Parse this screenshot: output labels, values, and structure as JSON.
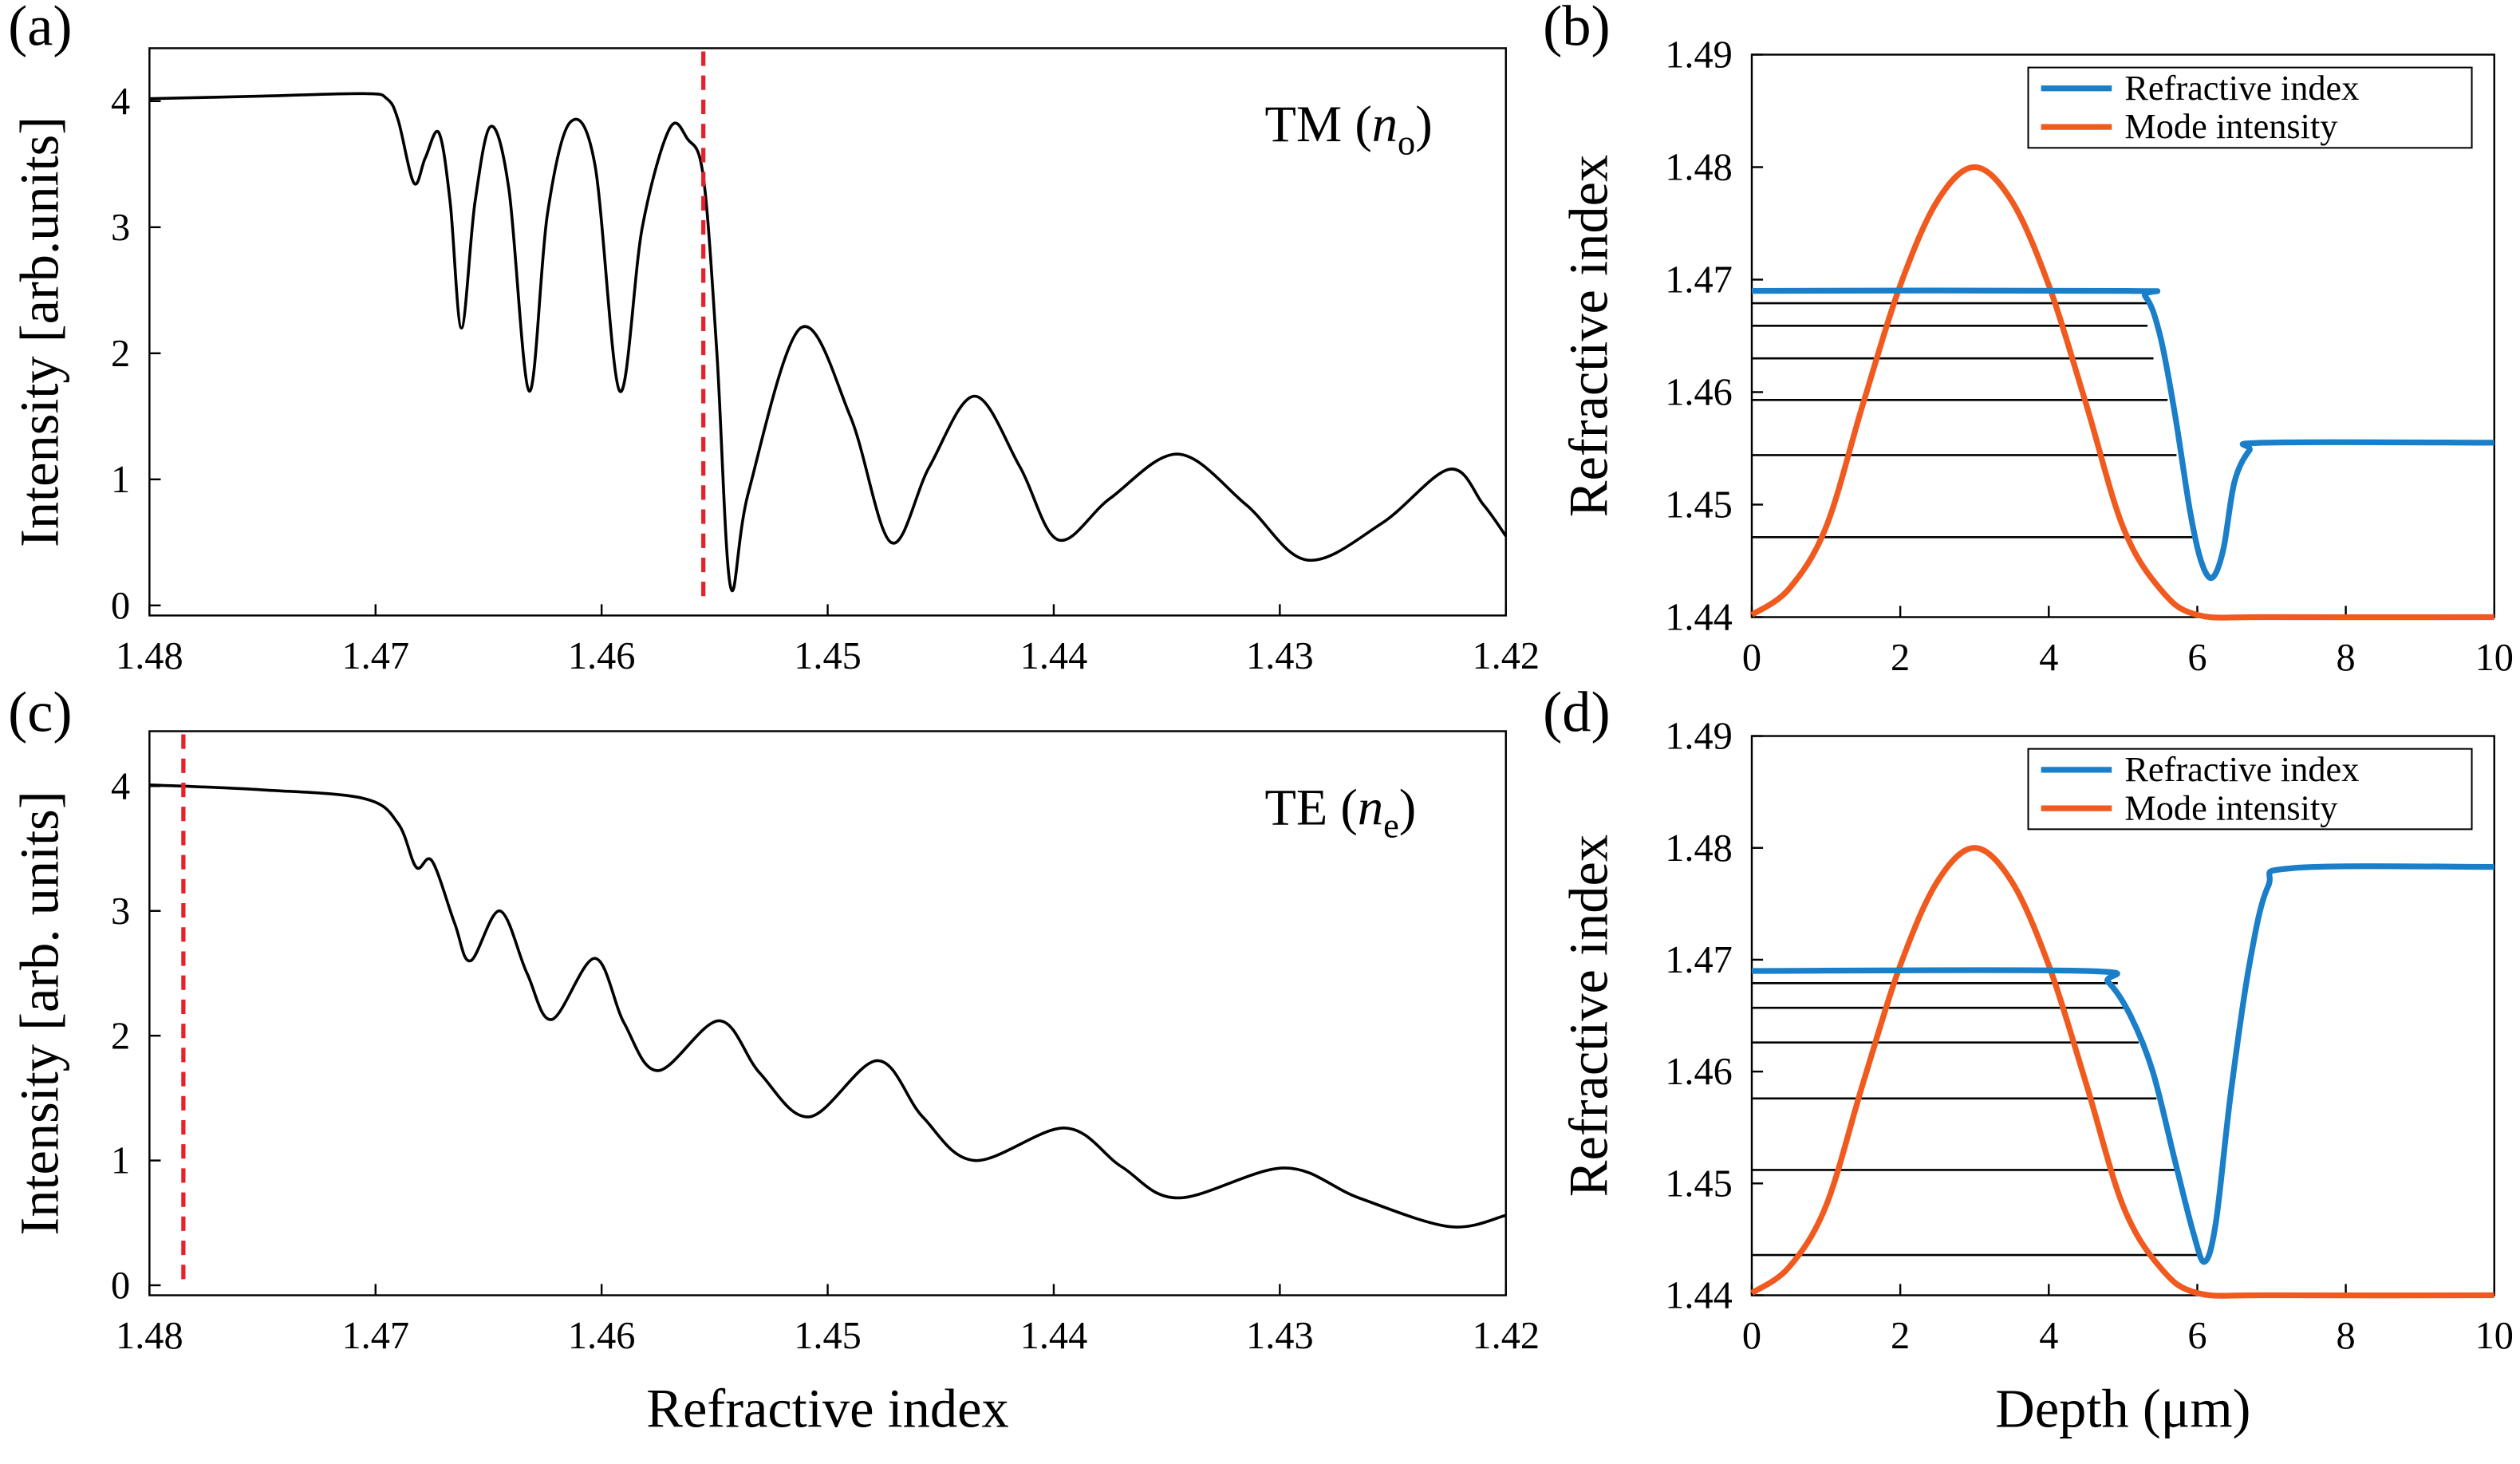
{
  "chart_data": [
    {
      "type": "line",
      "panel_label": "(a)",
      "ylabel": "Intensity [arb.units]",
      "annotation": [
        "TM (",
        "n",
        "o",
        ")"
      ],
      "x": [
        1.48,
        1.475,
        1.4705,
        1.4695,
        1.469,
        1.4683,
        1.4678,
        1.4672,
        1.4667,
        1.4662,
        1.4656,
        1.4649,
        1.4641,
        1.4632,
        1.4624,
        1.4614,
        1.4603,
        1.4592,
        1.4582,
        1.457,
        1.4562,
        1.4555,
        1.4549,
        1.4543,
        1.4535,
        1.4512,
        1.449,
        1.4472,
        1.4455,
        1.4435,
        1.4415,
        1.4398,
        1.4375,
        1.4345,
        1.4315,
        1.4288,
        1.4255,
        1.4225,
        1.421,
        1.42
      ],
      "values": [
        4.02,
        4.04,
        4.06,
        4.02,
        3.85,
        3.35,
        3.55,
        3.75,
        3.2,
        2.2,
        3.2,
        3.8,
        3.3,
        1.7,
        3.1,
        3.83,
        3.5,
        1.7,
        3.0,
        3.78,
        3.7,
        3.4,
        2.0,
        0.15,
        0.9,
        2.2,
        1.5,
        0.5,
        1.1,
        1.66,
        1.1,
        0.52,
        0.85,
        1.2,
        0.8,
        0.36,
        0.65,
        1.08,
        0.8,
        0.55
      ],
      "color": "#000000",
      "marker_x": 1.4555,
      "marker_color": "#e8202a",
      "xlim": [
        1.48,
        1.42
      ],
      "xticks": [
        1.48,
        1.47,
        1.46,
        1.45,
        1.44,
        1.43,
        1.42
      ],
      "ylim": [
        -0.08,
        4.42
      ],
      "yticks": [
        0,
        1,
        2,
        3,
        4
      ]
    },
    {
      "type": "modes",
      "panel_label": "(b)",
      "ylabel": "Refractive index",
      "series": [
        {
          "name": "Refractive index",
          "color": "#1a7fc8",
          "x": [
            0,
            5,
            5.3,
            5.5,
            5.7,
            5.9,
            6.05,
            6.2,
            6.35,
            6.5,
            6.7,
            6.9,
            10
          ],
          "values": [
            1.469,
            1.469,
            1.4685,
            1.465,
            1.458,
            1.4495,
            1.445,
            1.4435,
            1.446,
            1.452,
            1.4548,
            1.4555,
            1.4555
          ]
        },
        {
          "name": "Mode intensity",
          "color": "#f05a1e",
          "x": [
            0,
            0.5,
            1,
            1.5,
            2,
            2.5,
            3,
            3.5,
            4,
            4.5,
            5,
            5.5,
            6,
            7,
            10
          ],
          "values": [
            1.4402,
            1.4425,
            1.448,
            1.459,
            1.4695,
            1.477,
            1.48,
            1.477,
            1.4695,
            1.459,
            1.448,
            1.4425,
            1.4402,
            1.44,
            1.44
          ]
        }
      ],
      "mode_levels": [
        1.4679,
        1.4659,
        1.463,
        1.4593,
        1.4544,
        1.4471
      ],
      "mode_level_ends": [
        5.33,
        5.33,
        5.41,
        5.6,
        5.72,
        5.94
      ],
      "legend": "upper right",
      "xlim": [
        0,
        10
      ],
      "xticks": [
        0,
        2,
        4,
        6,
        8,
        10
      ],
      "ylim": [
        1.44,
        1.49
      ],
      "yticks": [
        1.44,
        1.45,
        1.46,
        1.47,
        1.48,
        1.49
      ]
    },
    {
      "type": "line",
      "panel_label": "(c)",
      "ylabel": "Intensity [arb. units]",
      "xlabel": "Refractive index",
      "annotation": [
        "TE (",
        "n",
        "e",
        ")"
      ],
      "x": [
        1.48,
        1.475,
        1.4705,
        1.469,
        1.4682,
        1.4675,
        1.4665,
        1.4658,
        1.4645,
        1.4633,
        1.4622,
        1.4603,
        1.459,
        1.4575,
        1.4548,
        1.453,
        1.4508,
        1.4478,
        1.4458,
        1.4435,
        1.4395,
        1.437,
        1.4345,
        1.4298,
        1.4265,
        1.4225,
        1.42
      ],
      "values": [
        4.01,
        3.97,
        3.9,
        3.7,
        3.35,
        3.4,
        2.9,
        2.6,
        3.0,
        2.5,
        2.13,
        2.62,
        2.1,
        1.72,
        2.12,
        1.7,
        1.35,
        1.8,
        1.35,
        1.0,
        1.26,
        0.95,
        0.7,
        0.94,
        0.7,
        0.47,
        0.56
      ],
      "color": "#000000",
      "marker_x": 1.4785,
      "marker_color": "#e8202a",
      "xlim": [
        1.48,
        1.42
      ],
      "xticks": [
        1.48,
        1.47,
        1.46,
        1.45,
        1.44,
        1.43,
        1.42
      ],
      "ylim": [
        -0.08,
        4.44
      ],
      "yticks": [
        0,
        1,
        2,
        3,
        4
      ]
    },
    {
      "type": "modes",
      "panel_label": "(d)",
      "ylabel": "Refractive index",
      "xlabel": "Depth (μm)",
      "series": [
        {
          "name": "Refractive index",
          "color": "#1a7fc8",
          "x": [
            0,
            4.5,
            4.8,
            5.1,
            5.4,
            5.7,
            5.95,
            6.1,
            6.25,
            6.45,
            6.7,
            6.95,
            7.3,
            10
          ],
          "values": [
            1.469,
            1.469,
            1.468,
            1.465,
            1.46,
            1.452,
            1.4455,
            1.443,
            1.4465,
            1.458,
            1.4695,
            1.4765,
            1.4782,
            1.4783
          ]
        },
        {
          "name": "Mode intensity",
          "color": "#f05a1e",
          "x": [
            0,
            0.5,
            1,
            1.5,
            2,
            2.5,
            3,
            3.5,
            4,
            4.5,
            5,
            5.5,
            6,
            7,
            10
          ],
          "values": [
            1.4402,
            1.4425,
            1.448,
            1.459,
            1.4695,
            1.477,
            1.48,
            1.477,
            1.4695,
            1.459,
            1.448,
            1.4425,
            1.4402,
            1.44,
            1.44
          ]
        }
      ],
      "mode_levels": [
        1.4679,
        1.4657,
        1.4626,
        1.4576,
        1.4512,
        1.4436
      ],
      "mode_level_ends": [
        4.93,
        5.06,
        5.21,
        5.45,
        5.74,
        6.06
      ],
      "legend": "upper right",
      "xlim": [
        0,
        10
      ],
      "xticks": [
        0,
        2,
        4,
        6,
        8,
        10
      ],
      "ylim": [
        1.44,
        1.49
      ],
      "yticks": [
        1.44,
        1.45,
        1.46,
        1.47,
        1.48,
        1.49
      ]
    }
  ]
}
